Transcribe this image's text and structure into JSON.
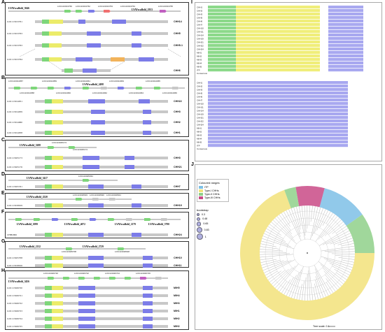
{
  "panels": {
    "A": {
      "letter": "A",
      "scaffold": "LVAVscaffold_3046",
      "top_genes": [
        "LOC113013760",
        "LOC113013762",
        "LOC113013763",
        "LOC113013764",
        "LVAVscaffold_1953",
        "LOC113013765"
      ],
      "rows": [
        {
          "gene": "LOC113013761",
          "family": "CHH14"
        },
        {
          "gene": "LOC113013763",
          "family": "CHH5"
        },
        {
          "gene": "LOC113013763",
          "family": "CHH5-1"
        },
        {
          "gene": "LOC113013764",
          "family": "CHH6"
        }
      ]
    },
    "B": {
      "letter": "B",
      "scaffold": "LVAVscaffold_2498",
      "top_genes": [
        "LOC113014057",
        "LOC113014058",
        "LOC113014059",
        "LOC113014060",
        "LOC113014061",
        "LOC113014062",
        "LOC113014063",
        "LOC113014064",
        "LOC113014065",
        "LOC113014066"
      ],
      "rows": [
        {
          "gene": "LOC113014051",
          "family": "CHH22"
        },
        {
          "gene": "LOC113014059",
          "family": "CHH3"
        },
        {
          "gene": "LOC113014060",
          "family": "CHH2"
        },
        {
          "gene": "LOC113014058",
          "family": "CHH1"
        }
      ]
    },
    "C": {
      "letter": "C",
      "scaffold": "LVAVscaffold_3288",
      "top_genes": [
        "LOC113025173",
        "LOC113025174"
      ],
      "rows": [
        {
          "gene": "LOC113025173",
          "family": "CHH3"
        },
        {
          "gene": "LOC113025176",
          "family": "CHH21"
        }
      ]
    },
    "D": {
      "letter": "D",
      "scaffold": "LVAVscaffold_3417",
      "top_genes": [
        "LOC113025331"
      ],
      "rows": [
        {
          "gene": "LOC113025331",
          "family": "CHH7"
        }
      ]
    },
    "E": {
      "letter": "E",
      "scaffold": "LVAVscaffold_2520",
      "top_genes": [
        "LOC113018919",
        "LOC113018920",
        "LOC113018921"
      ],
      "rows": [
        {
          "gene": "LOC113018919",
          "family": "CHH19"
        }
      ]
    },
    "F": {
      "letter": "F",
      "scaffolds": [
        "LVAVscaffold_1099",
        "LVAVscaffold_4072",
        "LVAVscaffold_2179",
        "LVAVscaffold_3790"
      ],
      "rows": [
        {
          "gene": "CHH2066",
          "family": "CHH24"
        }
      ]
    },
    "G": {
      "letter": "G",
      "scaffolds": [
        "LVAVscaffold_2132",
        "LVAVscaffold_2729"
      ],
      "top_genes": [
        "LOC113025708",
        "LOC113018918"
      ],
      "rows": [
        {
          "gene": "LOC113025708",
          "family": "CHH10"
        },
        {
          "gene": "LOC113018916",
          "family": "CHH11"
        }
      ]
    },
    "H": {
      "letter": "H",
      "scaffold": "LVAVscaffold_3456",
      "top_genes": [
        "LOC113026720",
        "LOC113026721",
        "LOC113026722",
        "LOC113026723",
        "LOC113026724",
        "LOC113026725",
        "LOC113026726",
        "LOC113026727"
      ],
      "rows": [
        {
          "gene": "LOC113026720",
          "family": "MIH5"
        },
        {
          "gene": "LOC113026721",
          "family": "MIH4"
        },
        {
          "gene": "LOC113026722",
          "family": "MIH3"
        },
        {
          "gene": "LOC113026723",
          "family": "MIH1"
        },
        {
          "gene": "LOC113026724",
          "family": "MIH2"
        },
        {
          "gene": "LOC113026725",
          "family": "MIH2"
        }
      ]
    },
    "I": {
      "letter": "I",
      "consensus_label": "Consensus",
      "sequences": [
        "CHH1",
        "CHH2",
        "CHH3",
        "CHH5",
        "CHH6",
        "CHH7",
        "CHH10",
        "CHH11",
        "CHH14",
        "CHH19",
        "CHH21",
        "CHH22",
        "CHH24",
        "MIH1",
        "MIH2",
        "MIH3",
        "MIH4",
        "MIH5",
        "ITP"
      ]
    },
    "J": {
      "letter": "J",
      "legend": {
        "title": "Coloured ranges",
        "items": [
          {
            "label": "ITP",
            "color": "#7ec0e6"
          },
          {
            "label": "Type-I CHHs",
            "color": "#f2e27a"
          },
          {
            "label": "Type-II CHHs",
            "color": "#8fd08a"
          },
          {
            "label": "Type-III CHHs",
            "color": "#c94a86"
          }
        ]
      },
      "bootstrap": {
        "title": "bootstrap",
        "values": [
          "0.3",
          "0.48",
          "0.65",
          "0.83",
          "1"
        ]
      },
      "tree_scale": "Tree scale: 0.1"
    }
  },
  "colors": {
    "green_exon": "#7ed67a",
    "yellow_exon": "#ecec6a",
    "blue_exon": "#7c7ce8",
    "orange_exon": "#f2b35a",
    "gray_intron": "#c8c8c8",
    "alignment_yellow": "#f0ee7a",
    "alignment_green": "#8cd98a",
    "alignment_blue": "#a8a8f0"
  }
}
